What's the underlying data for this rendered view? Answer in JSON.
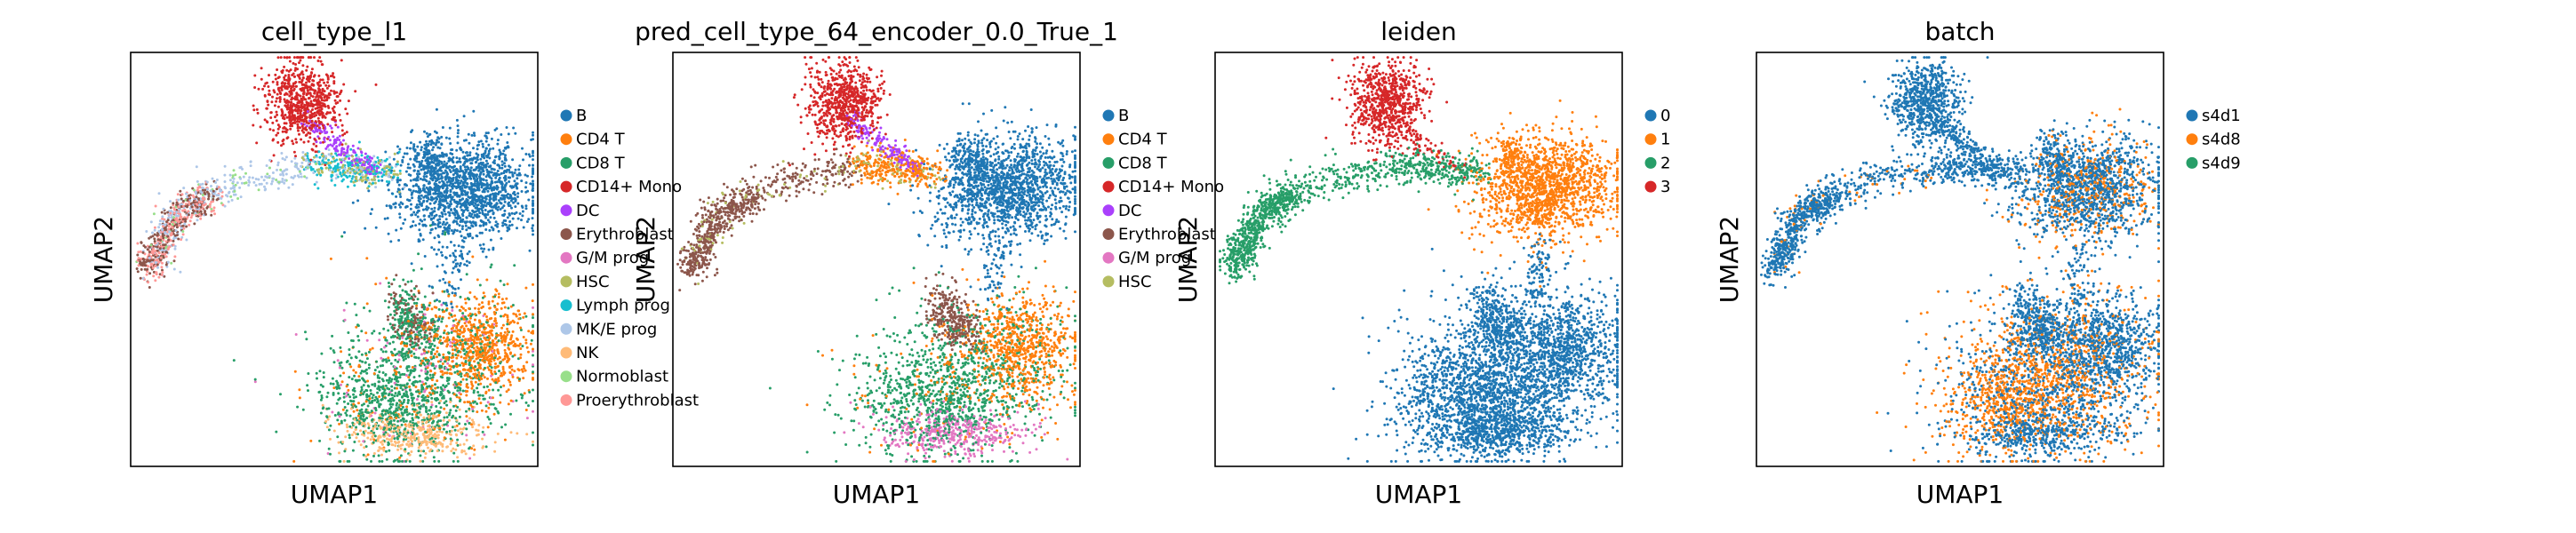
{
  "chart_data": [
    {
      "type": "scatter",
      "title": "cell_type_l1",
      "xlabel": "UMAP1",
      "ylabel": "UMAP2",
      "grid": false,
      "legend_position": "right",
      "series": [
        {
          "name": "B",
          "color": "#1f77b4"
        },
        {
          "name": "CD4 T",
          "color": "#ff7f0e"
        },
        {
          "name": "CD8 T",
          "color": "#279e68"
        },
        {
          "name": "CD14+ Mono",
          "color": "#d62728"
        },
        {
          "name": "DC",
          "color": "#aa40fc"
        },
        {
          "name": "Erythroblast",
          "color": "#8c564b"
        },
        {
          "name": "G/M prog",
          "color": "#e377c2"
        },
        {
          "name": "HSC",
          "color": "#b5bd61"
        },
        {
          "name": "Lymph prog",
          "color": "#17becf"
        },
        {
          "name": "MK/E prog",
          "color": "#aec7e8"
        },
        {
          "name": "NK",
          "color": "#ffbb78"
        },
        {
          "name": "Normoblast",
          "color": "#98df8a"
        },
        {
          "name": "Proerythroblast",
          "color": "#ff9896"
        }
      ]
    },
    {
      "type": "scatter",
      "title": "pred_cell_type_64_encoder_0.0_True_1",
      "xlabel": "UMAP1",
      "ylabel": "UMAP2",
      "grid": false,
      "legend_position": "right",
      "series": [
        {
          "name": "B",
          "color": "#1f77b4"
        },
        {
          "name": "CD4 T",
          "color": "#ff7f0e"
        },
        {
          "name": "CD8 T",
          "color": "#279e68"
        },
        {
          "name": "CD14+ Mono",
          "color": "#d62728"
        },
        {
          "name": "DC",
          "color": "#aa40fc"
        },
        {
          "name": "Erythroblast",
          "color": "#8c564b"
        },
        {
          "name": "G/M prog",
          "color": "#e377c2"
        },
        {
          "name": "HSC",
          "color": "#b5bd61"
        }
      ]
    },
    {
      "type": "scatter",
      "title": "leiden",
      "xlabel": "UMAP1",
      "ylabel": "UMAP2",
      "grid": false,
      "legend_position": "right",
      "series": [
        {
          "name": "0",
          "color": "#1f77b4"
        },
        {
          "name": "1",
          "color": "#ff7f0e"
        },
        {
          "name": "2",
          "color": "#279e68"
        },
        {
          "name": "3",
          "color": "#d62728"
        }
      ]
    },
    {
      "type": "scatter",
      "title": "batch",
      "xlabel": "UMAP1",
      "ylabel": "UMAP2",
      "grid": false,
      "legend_position": "right",
      "series": [
        {
          "name": "s4d1",
          "color": "#1f77b4"
        },
        {
          "name": "s4d8",
          "color": "#ff7f0e"
        },
        {
          "name": "s4d9",
          "color": "#279e68"
        }
      ]
    }
  ]
}
